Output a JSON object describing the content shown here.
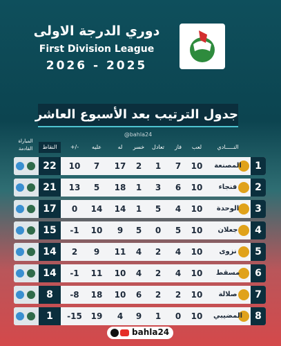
{
  "header": {
    "title_ar": "دوري الدرجة الاولى",
    "title_en": "First Division League",
    "season": "2026 - 2025"
  },
  "banner": "جدول الترتيب بعد الأسبوع العاشر",
  "watermark": "@bahla24",
  "table": {
    "columns": [
      "النـــــادي",
      "لعب",
      "فاز",
      "تعادل",
      "خسر",
      "له",
      "عليه",
      "+/-",
      "النقاط",
      "المباراة القادمة"
    ],
    "rows": [
      [
        1,
        "المصنعة",
        10,
        7,
        1,
        2,
        17,
        7,
        10,
        22
      ],
      [
        2,
        "فنجاء",
        10,
        6,
        3,
        1,
        18,
        5,
        13,
        21
      ],
      [
        3,
        "الوحدة",
        10,
        4,
        5,
        1,
        14,
        14,
        0,
        17
      ],
      [
        4,
        "جعلان",
        10,
        5,
        0,
        5,
        9,
        10,
        -1,
        15
      ],
      [
        5,
        "نزوى",
        10,
        4,
        2,
        4,
        11,
        9,
        2,
        14
      ],
      [
        6,
        "مسقط",
        10,
        4,
        2,
        4,
        10,
        11,
        -1,
        14
      ],
      [
        7,
        "صلالة",
        10,
        2,
        2,
        6,
        10,
        18,
        -8,
        8
      ],
      [
        8,
        "المضيبي",
        10,
        0,
        1,
        9,
        4,
        19,
        -15,
        1
      ]
    ]
  },
  "footer": {
    "handle": "bahla24"
  }
}
